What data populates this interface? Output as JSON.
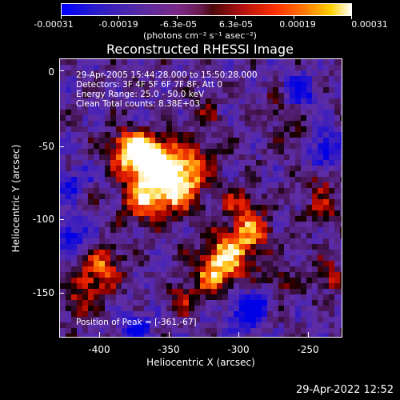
{
  "colorbar": {
    "ticks": [
      "-0.00031",
      "-0.00019",
      "-6.3e-05",
      "6.3e-05",
      "0.00019",
      "0.00031"
    ],
    "unit_label": "(photons cm⁻² s⁻¹ asec⁻²)"
  },
  "title": "Reconstructed RHESSI Image",
  "annotations": {
    "time": "29-Apr-2005 15:44:28.000 to 15:50:28.000",
    "detectors": "Detectors: 3F 4F 5F 6F 7F 8F, Att 0",
    "energy": "Energy Range: 25.0 - 50.0 keV",
    "method": "Clean     Total counts: 8.38E+03",
    "peak": "Position of Peak = [-361,-67]"
  },
  "axes": {
    "xlabel": "Heliocentric X (arcsec)",
    "ylabel": "Heliocentric Y (arcsec)",
    "xticks": [
      "-400",
      "-350",
      "-300",
      "-250"
    ],
    "yticks": [
      "0",
      "-50",
      "-100",
      "-150"
    ],
    "xrange": [
      -428,
      -235
    ],
    "yrange": [
      -183,
      8
    ]
  },
  "datestamp": "29-Apr-2022 12:52"
}
